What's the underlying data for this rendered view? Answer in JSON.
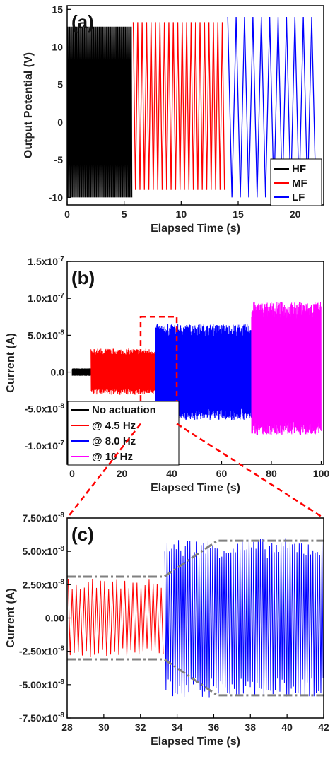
{
  "chart_data": [
    {
      "panel": "(a)",
      "type": "line",
      "xlabel": "Elapsed Time (s)",
      "ylabel": "Output Potential (V)",
      "xlim": [
        0,
        22.5
      ],
      "ylim": [
        -11,
        15.5
      ],
      "xticks": [
        0,
        5,
        10,
        15,
        20
      ],
      "yticks": [
        -10,
        -5,
        0,
        5,
        10,
        15
      ],
      "xtick_labels": [
        "0",
        "5",
        "10",
        "15",
        "20"
      ],
      "ytick_labels": [
        "-10",
        "-5",
        "0",
        "5",
        "10",
        "15"
      ],
      "legend_position": "bottom-right",
      "series": [
        {
          "name": "HF",
          "color": "#000000",
          "t_start": 0.0,
          "t_end": 5.7,
          "cycles": 57,
          "max": 12.7,
          "min": -10.0
        },
        {
          "name": "MF",
          "color": "#ff0000",
          "t_start": 5.7,
          "t_end": 13.9,
          "cycles": 21,
          "max": 13.3,
          "min": -9.0
        },
        {
          "name": "LF",
          "color": "#0000ff",
          "t_start": 13.9,
          "t_end": 22.0,
          "cycles": 11,
          "max": 14.0,
          "min": -10.0
        }
      ]
    },
    {
      "panel": "(b)",
      "type": "line",
      "xlabel": "Elapsed Time (s)",
      "ylabel": "Current (A)",
      "xlim": [
        -2,
        101
      ],
      "ylim": [
        -1.25e-07,
        1.5e-07
      ],
      "xticks": [
        0,
        20,
        40,
        60,
        80,
        100
      ],
      "yticks": [
        -1e-07,
        -5e-08,
        0,
        5e-08,
        1e-07,
        1.5e-07
      ],
      "xtick_labels": [
        "0",
        "20",
        "40",
        "60",
        "80",
        "100"
      ],
      "ytick_labels": [
        {
          "base": "-1.0x10",
          "exp": "-7"
        },
        {
          "base": "-5.0x10",
          "exp": "-8"
        },
        {
          "base": "0.0",
          "exp": ""
        },
        {
          "base": "5.0x10",
          "exp": "-8"
        },
        {
          "base": "1.0x10",
          "exp": "-7"
        },
        {
          "base": "1.5x10",
          "exp": "-7"
        }
      ],
      "legend_position": "bottom-left",
      "zoom_box": {
        "x": [
          27.5,
          42
        ],
        "y": [
          -7e-08,
          7.5e-08
        ]
      },
      "series": [
        {
          "name": "No actuation",
          "color": "#000000",
          "t_start": 0,
          "t_end": 7.5,
          "cycles": 150,
          "max": 5e-09,
          "min": -5e-09
        },
        {
          "name": "@ 4.5 Hz",
          "color": "#ff0000",
          "t_start": 7.5,
          "t_end": 33.3,
          "cycles": 116,
          "max": 3.2e-08,
          "min": -3.1e-08
        },
        {
          "name": "@ 8.0 Hz",
          "color": "#0000ff",
          "t_start": 33.3,
          "t_end": 72.0,
          "cycles": 310,
          "max": 6.5e-08,
          "min": -6.5e-08
        },
        {
          "name": "@ 10 Hz",
          "color": "#ff00ff",
          "t_start": 72.0,
          "t_end": 100.0,
          "cycles": 280,
          "max": 9.5e-08,
          "min": -8.5e-08
        }
      ]
    },
    {
      "panel": "(c)",
      "type": "line",
      "xlabel": "Elapsed Time (s)",
      "ylabel": "Current (A)",
      "xlim": [
        28,
        42
      ],
      "ylim": [
        -7.5e-08,
        7.5e-08
      ],
      "xticks": [
        28,
        30,
        32,
        34,
        36,
        38,
        40,
        42
      ],
      "yticks": [
        -7.5e-08,
        -5e-08,
        -2.5e-08,
        0,
        2.5e-08,
        5e-08,
        7.5e-08
      ],
      "xtick_labels": [
        "28",
        "30",
        "32",
        "34",
        "36",
        "38",
        "40",
        "42"
      ],
      "ytick_labels": [
        {
          "base": "-7.50x10",
          "exp": "-8"
        },
        {
          "base": "-5.00x10",
          "exp": "-8"
        },
        {
          "base": "-2.50x10",
          "exp": "-8"
        },
        {
          "base": "0.00",
          "exp": ""
        },
        {
          "base": "2.50x10",
          "exp": "-8"
        },
        {
          "base": "5.00x10",
          "exp": "-8"
        },
        {
          "base": "7.50x10",
          "exp": "-8"
        }
      ],
      "series": [
        {
          "name": "@ 4.5 Hz",
          "color": "#ff0000",
          "t_start": 28.0,
          "t_end": 33.3,
          "cycles": 24,
          "max": 2.9e-08,
          "min": -2.9e-08
        },
        {
          "name": "@ 8.0 Hz",
          "color": "#0000ff",
          "t_start": 33.3,
          "t_end": 42.0,
          "cycles": 70,
          "max": 6e-08,
          "min": -6e-08
        }
      ],
      "envelope": {
        "color": "#808080",
        "upper": [
          [
            28,
            3.1e-08
          ],
          [
            33.3,
            3.1e-08
          ],
          [
            36.2,
            5.8e-08
          ],
          [
            42,
            5.8e-08
          ]
        ],
        "lower": [
          [
            28,
            -3.1e-08
          ],
          [
            33.3,
            -3.1e-08
          ],
          [
            36.2,
            -5.8e-08
          ],
          [
            42,
            -5.8e-08
          ]
        ]
      }
    }
  ]
}
